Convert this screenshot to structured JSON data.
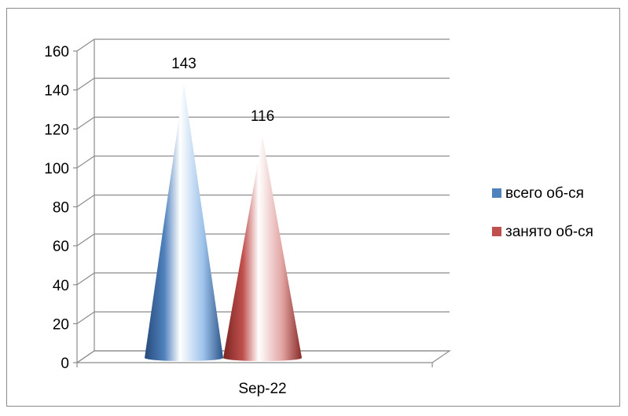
{
  "chart_data": {
    "type": "bar",
    "bar_shape": "cone",
    "categories": [
      "Sep-22"
    ],
    "series": [
      {
        "name": "всего об-ся",
        "values": [
          143
        ],
        "color": "#4f81bd"
      },
      {
        "name": "занято об-ся",
        "values": [
          116
        ],
        "color": "#c0504d"
      }
    ],
    "ylim": [
      0,
      160
    ],
    "yticks": [
      "0",
      "20",
      "40",
      "60",
      "80",
      "100",
      "120",
      "140",
      "160"
    ],
    "data_labels": [
      "143",
      "116"
    ],
    "grid": true,
    "legend": "right",
    "three_d": true
  }
}
